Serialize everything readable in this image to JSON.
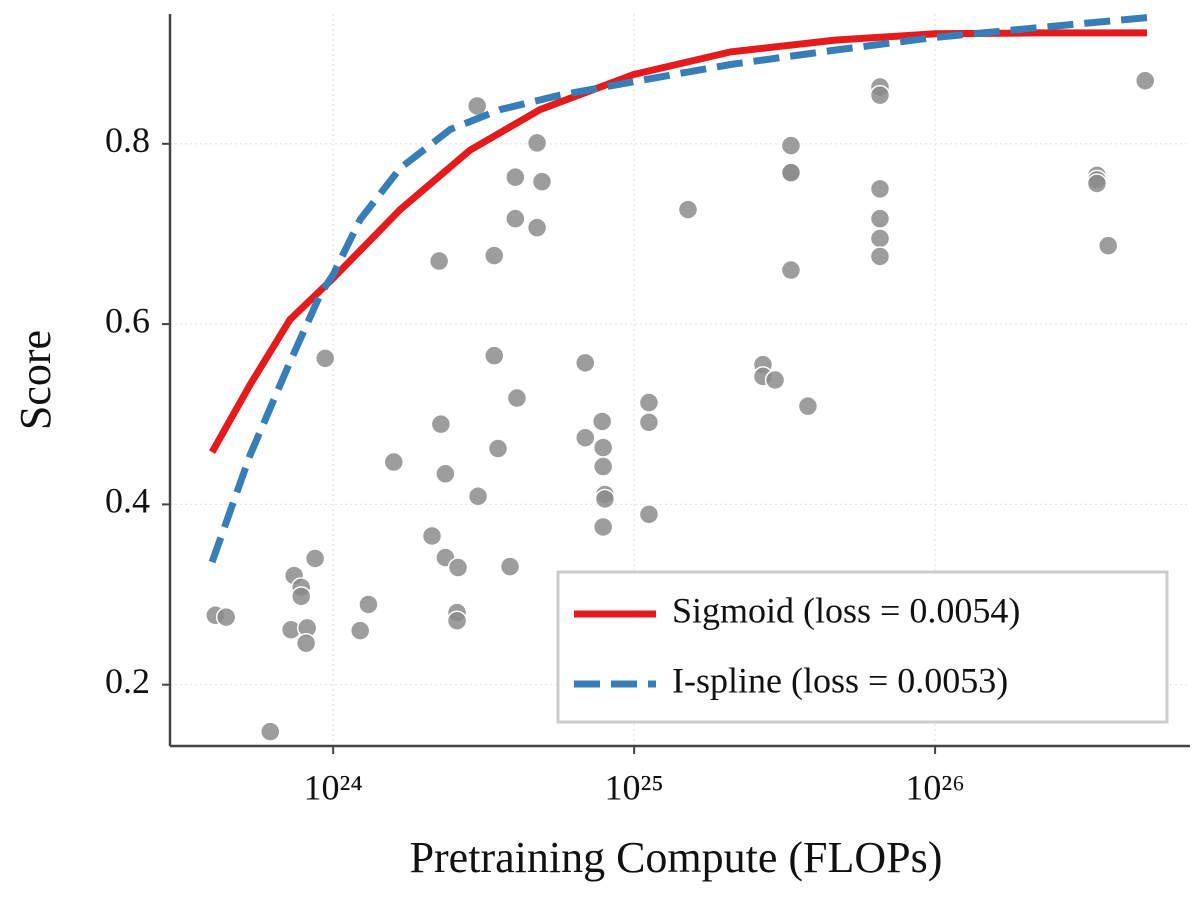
{
  "chart_data": {
    "type": "scatter",
    "x_label": "Pretraining Compute (FLOPs)",
    "y_label": "Score",
    "xscale": "log",
    "grid": true,
    "legend": "lower right",
    "xlim": [
      2.87e+23,
      7.03e+26
    ],
    "ylim": [
      0.132,
      0.944
    ],
    "xticks": [
      {
        "value": 1e+24,
        "label": "10²⁴"
      },
      {
        "value": 1e+25,
        "label": "10²⁵"
      },
      {
        "value": 1e+26,
        "label": "10²⁶"
      }
    ],
    "yticks": [
      0.2,
      0.4,
      0.6,
      0.8
    ],
    "points": {
      "color": "#8c8c8c",
      "x": [
        4.06e+23,
        4.41e+23,
        6.18e+23,
        7.42e+23,
        7.25e+23,
        7.83e+23,
        7.83e+23,
        8.2e+23,
        8.13e+23,
        8.71e+23,
        9.41e+23,
        1.23e+24,
        1.31e+24,
        1.59e+24,
        2.13e+24,
        2.25e+24,
        2.28e+24,
        2.36e+24,
        2.36e+24,
        2.6e+24,
        2.58e+24,
        2.58e+24,
        3.01e+24,
        3.03e+24,
        3.43e+24,
        3.43e+24,
        3.53e+24,
        3.87e+24,
        4.03e+24,
        4.03e+24,
        4.08e+24,
        4.76e+24,
        4.76e+24,
        4.94e+24,
        6.88e+24,
        6.88e+24,
        7.83e+24,
        7.89e+24,
        7.89e+24,
        8e+24,
        8e+24,
        7.89e+24,
        1.12e+25,
        1.12e+25,
        1.12e+25,
        1.51e+25,
        2.68e+25,
        2.68e+25,
        2.94e+25,
        3.32e+25,
        3.32e+25,
        3.32e+25,
        3.32e+25,
        3.78e+25,
        6.56e+25,
        6.56e+25,
        6.56e+25,
        6.56e+25,
        6.56e+25,
        6.56e+25,
        3.45e+26,
        3.45e+26,
        3.45e+26,
        3.76e+26,
        4.99e+26
      ],
      "y": [
        0.277,
        0.275,
        0.148,
        0.321,
        0.261,
        0.308,
        0.298,
        0.263,
        0.246,
        0.34,
        0.562,
        0.26,
        0.289,
        0.447,
        0.365,
        0.67,
        0.489,
        0.434,
        0.341,
        0.33,
        0.28,
        0.271,
        0.842,
        0.409,
        0.676,
        0.565,
        0.462,
        0.331,
        0.763,
        0.717,
        0.518,
        0.801,
        0.707,
        0.758,
        0.557,
        0.474,
        0.492,
        0.463,
        0.442,
        0.411,
        0.406,
        0.375,
        0.513,
        0.491,
        0.389,
        0.727,
        0.555,
        0.542,
        0.538,
        0.798,
        0.768,
        0.768,
        0.66,
        0.509,
        0.863,
        0.854,
        0.75,
        0.717,
        0.695,
        0.675,
        0.765,
        0.76,
        0.756,
        0.687,
        0.87
      ]
    },
    "series": [
      {
        "name": "Sigmoid (loss = 0.0054)",
        "color": "#e41a1c",
        "dashed": false,
        "x": [
          3.96e+23,
          5.3e+23,
          7.19e+23,
          1e+24,
          1.67e+24,
          2.85e+24,
          4.87e+24,
          1e+25,
          2.09e+25,
          4.65e+25,
          1e+26,
          2.23e+26,
          5.06e+26
        ],
        "values": [
          0.458,
          0.533,
          0.605,
          0.651,
          0.727,
          0.793,
          0.838,
          0.877,
          0.902,
          0.915,
          0.922,
          0.923,
          0.923
        ]
      },
      {
        "name": "I-spline (loss = 0.0053)",
        "color": "#377eb8",
        "dashed": true,
        "x": [
          3.96e+23,
          5.3e+23,
          7.19e+23,
          9.06e+23,
          1e+24,
          1.23e+24,
          1.67e+24,
          2.45e+24,
          3.59e+24,
          5.68e+24,
          1e+25,
          2.09e+25,
          4.65e+25,
          1e+26,
          2.23e+26,
          5.06e+26
        ],
        "values": [
          0.336,
          0.455,
          0.558,
          0.633,
          0.655,
          0.716,
          0.773,
          0.816,
          0.838,
          0.854,
          0.869,
          0.888,
          0.904,
          0.918,
          0.929,
          0.94
        ]
      }
    ]
  }
}
